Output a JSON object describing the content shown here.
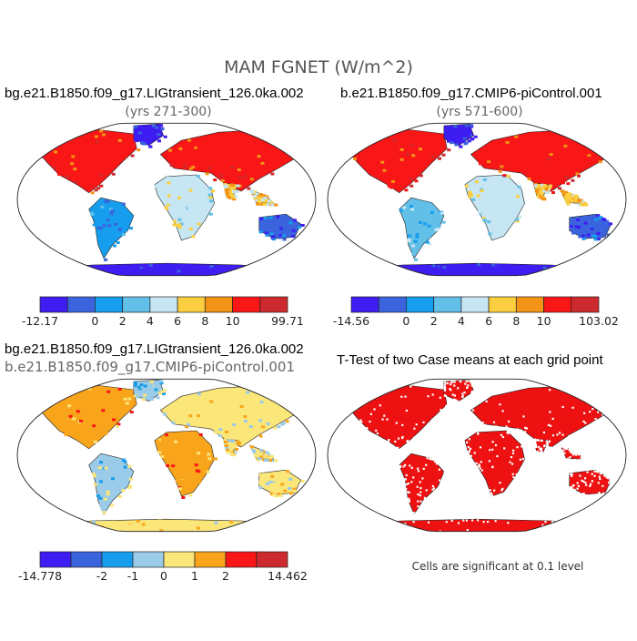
{
  "figure": {
    "title": "MAM FGNET (W/m^2)"
  },
  "chart_data": [
    {
      "type": "heatmap",
      "panel": "top-left",
      "title": "bg.e21.B1850.f09_g17.LIGtransient_126.0ka.002",
      "subtitle": "(yrs 271-300)",
      "colorbar": {
        "colors": [
          "#3e1df2",
          "#3a63dd",
          "#169ded",
          "#61bfe8",
          "#c6e6f4",
          "#fbcf3f",
          "#f39416",
          "#f91617",
          "#cc2a2e"
        ],
        "tick_labels": [
          "-12.17",
          "0",
          "2",
          "4",
          "6",
          "8",
          "10",
          "99.71"
        ],
        "min": -12.17,
        "max": 99.71
      },
      "field_highlights": [
        "warm over Eurasia and North America",
        "cool over southern oceans and Antarctica"
      ]
    },
    {
      "type": "heatmap",
      "panel": "top-right",
      "title": "b.e21.B1850.f09_g17.CMIP6-piControl.001",
      "subtitle": "(yrs 571-600)",
      "colorbar": {
        "colors": [
          "#3e1df2",
          "#3a63dd",
          "#169ded",
          "#61bfe8",
          "#c6e6f4",
          "#fbcf3f",
          "#f39416",
          "#f91617",
          "#cc2a2e"
        ],
        "tick_labels": [
          "-14.56",
          "0",
          "2",
          "4",
          "6",
          "8",
          "10",
          "103.02"
        ],
        "min": -14.56,
        "max": 103.02
      }
    },
    {
      "type": "heatmap",
      "panel": "bottom-left",
      "title": "bg.e21.B1850.f09_g17.LIGtransient_126.0ka.002",
      "subtitle": "b.e21.B1850.f09_g17.CMIP6-piControl.001",
      "colorbar": {
        "colors": [
          "#3e1df2",
          "#3a63dd",
          "#169ded",
          "#9acbe8",
          "#fbe67a",
          "#f9a51b",
          "#f91617",
          "#cc2a2e"
        ],
        "tick_labels": [
          "-14.778",
          "-2",
          "-1",
          "0",
          "1",
          "2",
          "14.462"
        ],
        "min": -14.778,
        "max": 14.462
      }
    },
    {
      "type": "heatmap",
      "panel": "bottom-right",
      "title": "T-Test of two Case means at each grid point",
      "note": "Cells are significant at 0.1 level",
      "significant_color": "#ee1111"
    }
  ]
}
